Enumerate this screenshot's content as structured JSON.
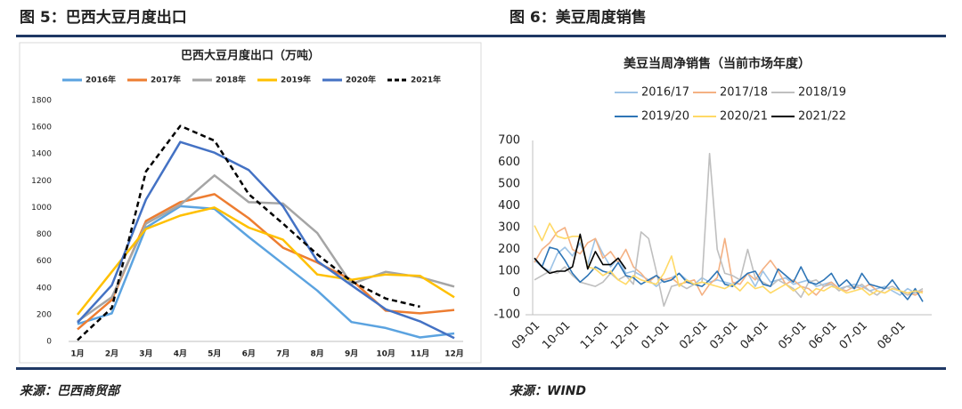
{
  "figure_left": "图 5：巴西大豆月度出口",
  "figure_right": "图 6：美豆周度销售",
  "source_left": "来源：巴西商贸部",
  "source_right": "来源：WIND",
  "chart_data": [
    {
      "type": "line",
      "title": "巴西大豆月度出口（万吨）",
      "categories": [
        "1月",
        "2月",
        "3月",
        "4月",
        "5月",
        "6月",
        "7月",
        "8月",
        "9月",
        "10月",
        "11月",
        "12月"
      ],
      "ylim": [
        0,
        1800
      ],
      "yticks": [
        0,
        200,
        400,
        600,
        800,
        1000,
        1200,
        1400,
        1600,
        1800
      ],
      "grid": false,
      "series": [
        {
          "name": "2016年",
          "color": "#5ba3e0",
          "values": [
            130,
            210,
            850,
            1010,
            990,
            780,
            580,
            380,
            145,
            100,
            30,
            60
          ]
        },
        {
          "name": "2017年",
          "color": "#ed7d31",
          "values": [
            90,
            310,
            900,
            1040,
            1100,
            920,
            700,
            590,
            460,
            230,
            210,
            235
          ]
        },
        {
          "name": "2018年",
          "color": "#a5a5a5",
          "values": [
            150,
            330,
            880,
            1020,
            1240,
            1040,
            1030,
            810,
            430,
            520,
            480,
            410
          ]
        },
        {
          "name": "2019年",
          "color": "#ffc000",
          "values": [
            200,
            520,
            840,
            940,
            1000,
            850,
            760,
            500,
            460,
            500,
            490,
            330
          ]
        },
        {
          "name": "2020年",
          "color": "#4472c4",
          "values": [
            140,
            420,
            1060,
            1490,
            1410,
            1280,
            1010,
            600,
            420,
            240,
            150,
            25
          ]
        },
        {
          "name": "2021年",
          "color": "#000000",
          "dashed": true,
          "values": [
            10,
            250,
            1270,
            1610,
            1500,
            1100,
            880,
            650,
            450,
            320,
            260,
            null
          ]
        }
      ]
    },
    {
      "type": "line",
      "title": "美豆当周净销售（当前市场年度）",
      "categories": [
        "09-01",
        null,
        null,
        null,
        "10-01",
        null,
        null,
        null,
        null,
        "11-01",
        null,
        null,
        null,
        "12-01",
        null,
        null,
        null,
        "01-01",
        null,
        null,
        null,
        null,
        "02-01",
        null,
        null,
        null,
        "03-01",
        null,
        null,
        null,
        "04-01",
        null,
        null,
        null,
        null,
        "05-01",
        null,
        null,
        null,
        "06-01",
        null,
        null,
        null,
        "07-01",
        null,
        null,
        null,
        null,
        "08-01",
        null,
        null,
        null
      ],
      "ylim": [
        -100,
        700
      ],
      "yticks": [
        -100,
        0,
        100,
        200,
        300,
        400,
        500,
        600,
        700
      ],
      "grid": false,
      "series": [
        {
          "name": "2016/17",
          "color": "#9dc3e6",
          "values": [
            150,
            120,
            100,
            180,
            210,
            170,
            230,
            130,
            250,
            180,
            120,
            160,
            90,
            100,
            80,
            60,
            30,
            60,
            70,
            90,
            60,
            40,
            70,
            50,
            60,
            50,
            40,
            60,
            90,
            30,
            100,
            50,
            60,
            70,
            40,
            50,
            60,
            30,
            40,
            50,
            20,
            30,
            40,
            30,
            10,
            20,
            30,
            10,
            -10,
            20,
            0,
            10
          ]
        },
        {
          "name": "2017/18",
          "color": "#f4b183",
          "values": [
            140,
            200,
            230,
            280,
            300,
            200,
            180,
            230,
            250,
            160,
            190,
            140,
            200,
            120,
            90,
            50,
            80,
            60,
            70,
            40,
            50,
            60,
            -10,
            40,
            70,
            250,
            50,
            40,
            90,
            60,
            110,
            150,
            100,
            40,
            60,
            30,
            20,
            -10,
            30,
            50,
            20,
            10,
            30,
            20,
            40,
            10,
            0,
            20,
            10,
            0,
            -10,
            10
          ]
        },
        {
          "name": "2018/19",
          "color": "#bfbfbf",
          "values": [
            60,
            80,
            100,
            90,
            120,
            80,
            50,
            40,
            30,
            50,
            90,
            60,
            80,
            40,
            280,
            250,
            100,
            -60,
            30,
            40,
            20,
            40,
            50,
            640,
            200,
            90,
            80,
            60,
            200,
            70,
            50,
            30,
            60,
            40,
            20,
            -20,
            50,
            60,
            30,
            40,
            10,
            30,
            20,
            40,
            10,
            -10,
            20,
            30,
            10,
            -10,
            0,
            20
          ]
        },
        {
          "name": "2019/20",
          "color": "#2e75b6",
          "values": [
            160,
            120,
            210,
            200,
            150,
            90,
            50,
            80,
            120,
            100,
            90,
            140,
            80,
            70,
            40,
            60,
            80,
            50,
            60,
            90,
            50,
            40,
            30,
            60,
            100,
            40,
            30,
            60,
            90,
            100,
            40,
            30,
            110,
            80,
            50,
            120,
            50,
            40,
            60,
            90,
            30,
            60,
            20,
            90,
            40,
            30,
            20,
            60,
            10,
            -30,
            20,
            -40
          ]
        },
        {
          "name": "2020/21",
          "color": "#ffd966",
          "values": [
            310,
            240,
            320,
            260,
            250,
            260,
            260,
            120,
            110,
            80,
            100,
            60,
            40,
            80,
            60,
            50,
            40,
            90,
            170,
            30,
            60,
            40,
            50,
            40,
            30,
            20,
            40,
            10,
            50,
            20,
            30,
            0,
            20,
            40,
            10,
            30,
            -10,
            20,
            10,
            30,
            20,
            0,
            10,
            20,
            -10,
            10,
            0,
            20,
            10,
            0,
            10,
            0
          ]
        },
        {
          "name": "2021/22",
          "color": "#000000",
          "values": [
            160,
            120,
            90,
            100,
            100,
            120,
            270,
            110,
            190,
            130,
            130,
            160,
            110,
            null,
            null,
            null,
            null,
            null,
            null,
            null,
            null,
            null,
            null,
            null,
            null,
            null,
            null,
            null,
            null,
            null,
            null,
            null,
            null,
            null,
            null,
            null,
            null,
            null,
            null,
            null,
            null,
            null,
            null,
            null,
            null,
            null,
            null,
            null,
            null,
            null,
            null,
            null
          ]
        }
      ]
    }
  ]
}
